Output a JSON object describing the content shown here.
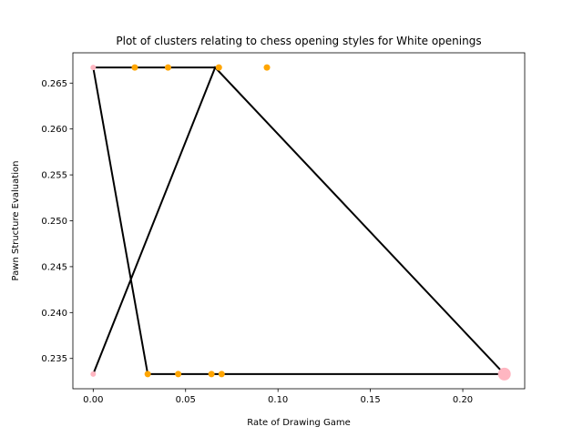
{
  "chart_data": {
    "type": "scatter",
    "title": "Plot of clusters relating to chess opening styles for White openings",
    "xlabel": "Rate of Drawing Game",
    "ylabel": "Pawn Structure Evaluation",
    "xlim": [
      -0.011,
      0.2335
    ],
    "ylim": [
      0.2317,
      0.2683
    ],
    "xticks": [
      0.0,
      0.05,
      0.1,
      0.15,
      0.2
    ],
    "xtick_labels": [
      "0.00",
      "0.05",
      "0.10",
      "0.15",
      "0.20"
    ],
    "yticks": [
      0.235,
      0.24,
      0.245,
      0.25,
      0.255,
      0.26,
      0.265
    ],
    "ytick_labels": [
      "0.235",
      "0.240",
      "0.245",
      "0.250",
      "0.255",
      "0.260",
      "0.265"
    ],
    "grid": false,
    "series": [
      {
        "color": "#ffa500",
        "points": [
          {
            "x": 0.0225,
            "y": 0.2667,
            "size": 5
          },
          {
            "x": 0.0405,
            "y": 0.2667,
            "size": 5
          },
          {
            "x": 0.068,
            "y": 0.2667,
            "size": 5
          },
          {
            "x": 0.094,
            "y": 0.2667,
            "size": 5
          },
          {
            "x": 0.0295,
            "y": 0.2333,
            "size": 5
          },
          {
            "x": 0.046,
            "y": 0.2333,
            "size": 5
          },
          {
            "x": 0.064,
            "y": 0.2333,
            "size": 5
          },
          {
            "x": 0.0695,
            "y": 0.2333,
            "size": 5
          }
        ]
      },
      {
        "color": "#ffb6c1",
        "points": [
          {
            "x": 0.0,
            "y": 0.2667,
            "size": 4
          },
          {
            "x": 0.0,
            "y": 0.2333,
            "size": 4
          },
          {
            "x": 0.2225,
            "y": 0.2333,
            "size": 12
          }
        ]
      }
    ],
    "polygons": [
      {
        "color": "#000000",
        "vertices": [
          {
            "x": 0.0,
            "y": 0.2667
          },
          {
            "x": 0.0295,
            "y": 0.2333
          },
          {
            "x": 0.2225,
            "y": 0.2333
          },
          {
            "x": 0.066,
            "y": 0.2667
          },
          {
            "x": 0.0,
            "y": 0.2333
          },
          {
            "x": 0.066,
            "y": 0.2667
          },
          {
            "x": 0.0,
            "y": 0.2667
          }
        ]
      }
    ]
  }
}
